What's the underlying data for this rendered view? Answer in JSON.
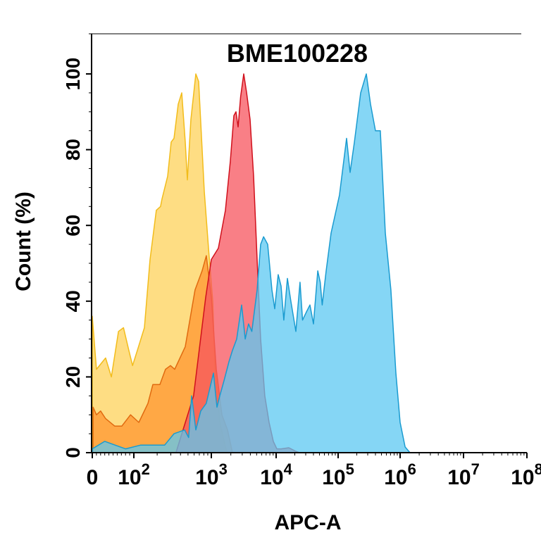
{
  "chart_data": {
    "type": "area",
    "title": "BME100228",
    "xlabel": "APC-A",
    "ylabel": "Count  (%)",
    "x_scale": "biexponential",
    "xlim": [
      0,
      100000000
    ],
    "ylim": [
      0,
      100
    ],
    "x_ticks": [
      {
        "value": 0,
        "base": "0",
        "exp": ""
      },
      {
        "value": 100,
        "base": "10",
        "exp": "2"
      },
      {
        "value": 1000,
        "base": "10",
        "exp": "3"
      },
      {
        "value": 10000,
        "base": "10",
        "exp": "4"
      },
      {
        "value": 100000,
        "base": "10",
        "exp": "5"
      },
      {
        "value": 1000000,
        "base": "10",
        "exp": "6"
      },
      {
        "value": 10000000,
        "base": "10",
        "exp": "7"
      },
      {
        "value": 100000000,
        "base": "10",
        "exp": "8"
      }
    ],
    "y_ticks": [
      "0",
      "20",
      "40",
      "60",
      "80",
      "100"
    ],
    "grid": false,
    "legend": "none",
    "series": [
      {
        "color": "#f2bc1b",
        "fill": "#fdd15a",
        "points": [
          [
            0,
            36
          ],
          [
            10,
            22
          ],
          [
            32,
            25
          ],
          [
            46,
            20
          ],
          [
            63,
            32
          ],
          [
            75,
            33
          ],
          [
            88,
            27
          ],
          [
            97,
            23
          ],
          [
            111,
            27
          ],
          [
            137,
            33
          ],
          [
            162,
            51
          ],
          [
            195,
            64
          ],
          [
            221,
            65
          ],
          [
            231,
            67
          ],
          [
            273,
            73
          ],
          [
            303,
            82
          ],
          [
            330,
            83
          ],
          [
            374,
            92
          ],
          [
            415,
            95
          ],
          [
            461,
            82
          ],
          [
            491,
            72
          ],
          [
            545,
            88
          ],
          [
            631,
            100
          ],
          [
            686,
            98
          ],
          [
            811,
            69
          ],
          [
            920,
            54
          ],
          [
            1051,
            40
          ],
          [
            1133,
            23
          ],
          [
            1350,
            8
          ],
          [
            1735,
            0
          ]
        ]
      },
      {
        "color": "#e06a10",
        "fill": "#ff9530",
        "points": [
          [
            2,
            12
          ],
          [
            10,
            10
          ],
          [
            20,
            11
          ],
          [
            32,
            9
          ],
          [
            54,
            7
          ],
          [
            71,
            7
          ],
          [
            92,
            10
          ],
          [
            116,
            8
          ],
          [
            152,
            13
          ],
          [
            176,
            18
          ],
          [
            217,
            18
          ],
          [
            256,
            22
          ],
          [
            297,
            23
          ],
          [
            337,
            22
          ],
          [
            461,
            28
          ],
          [
            617,
            43
          ],
          [
            760,
            48
          ],
          [
            862,
            52
          ],
          [
            1000,
            41
          ],
          [
            1191,
            22
          ],
          [
            1455,
            10
          ],
          [
            1778,
            6
          ],
          [
            2118,
            0
          ]
        ]
      },
      {
        "color": "#d0101c",
        "fill": "#f7545e",
        "points": [
          [
            350,
            0
          ],
          [
            590,
            15
          ],
          [
            846,
            41
          ],
          [
            1000,
            51
          ],
          [
            1284,
            54
          ],
          [
            1650,
            64
          ],
          [
            1965,
            77
          ],
          [
            2228,
            89
          ],
          [
            2403,
            90
          ],
          [
            2588,
            86
          ],
          [
            2833,
            94
          ],
          [
            3162,
            100
          ],
          [
            3500,
            95
          ],
          [
            3960,
            88
          ],
          [
            4490,
            73
          ],
          [
            5090,
            51
          ],
          [
            5770,
            30
          ],
          [
            6680,
            15
          ],
          [
            7780,
            8
          ],
          [
            9050,
            3
          ],
          [
            10260,
            1
          ],
          [
            12000,
            1
          ],
          [
            16000,
            1.3
          ],
          [
            20500,
            0.4
          ],
          [
            23700,
            0
          ]
        ]
      },
      {
        "color": "#1a9bd0",
        "fill": "#5cc8f2",
        "points": [
          [
            0,
            1
          ],
          [
            30,
            3
          ],
          [
            80,
            1
          ],
          [
            123,
            2
          ],
          [
            250,
            2
          ],
          [
            330,
            5
          ],
          [
            452,
            6
          ],
          [
            510,
            4
          ],
          [
            556,
            15
          ],
          [
            631,
            6
          ],
          [
            731,
            11
          ],
          [
            860,
            13
          ],
          [
            1078,
            21
          ],
          [
            1222,
            12
          ],
          [
            1350,
            15
          ],
          [
            1570,
            19
          ],
          [
            1870,
            24
          ],
          [
            2120,
            27
          ],
          [
            2460,
            30
          ],
          [
            2930,
            39
          ],
          [
            3330,
            30
          ],
          [
            3750,
            34
          ],
          [
            4220,
            32
          ],
          [
            5090,
            43
          ],
          [
            5770,
            55
          ],
          [
            6400,
            57
          ],
          [
            7400,
            55
          ],
          [
            8600,
            43
          ],
          [
            9500,
            38
          ],
          [
            10800,
            47
          ],
          [
            12000,
            44
          ],
          [
            13300,
            35
          ],
          [
            15200,
            46
          ],
          [
            17300,
            40
          ],
          [
            20800,
            32
          ],
          [
            24300,
            45
          ],
          [
            26700,
            35
          ],
          [
            30500,
            37
          ],
          [
            35100,
            39
          ],
          [
            40000,
            34
          ],
          [
            46900,
            48
          ],
          [
            51500,
            45
          ],
          [
            55300,
            39
          ],
          [
            64100,
            48
          ],
          [
            77000,
            58
          ],
          [
            90000,
            63
          ],
          [
            105000,
            68
          ],
          [
            137000,
            83
          ],
          [
            156000,
            74
          ],
          [
            183000,
            82
          ],
          [
            231000,
            95
          ],
          [
            285000,
            100
          ],
          [
            333000,
            92
          ],
          [
            400000,
            85
          ],
          [
            480000,
            85
          ],
          [
            577000,
            58
          ],
          [
            710000,
            43
          ],
          [
            854000,
            21
          ],
          [
            1000000,
            8
          ],
          [
            1200000,
            1.5
          ],
          [
            1430000,
            0
          ]
        ]
      }
    ]
  }
}
